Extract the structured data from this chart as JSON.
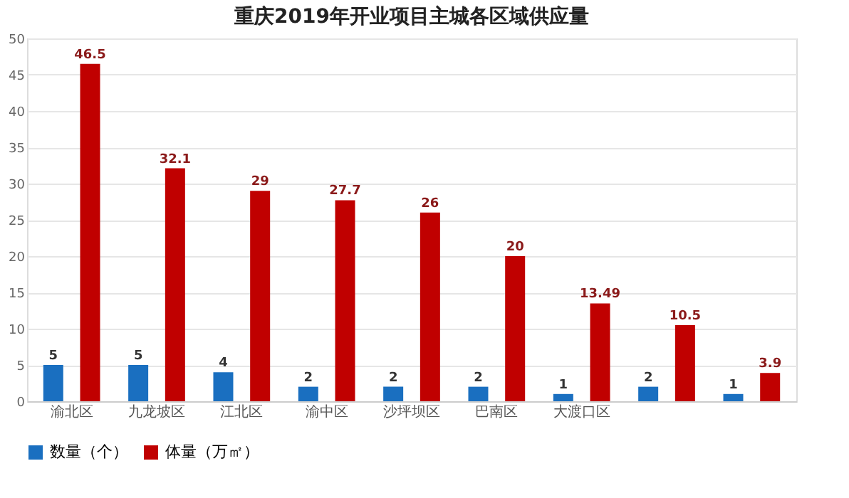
{
  "chart_data": {
    "type": "bar",
    "title": "重庆2019年开业项目主城各区域供应量",
    "categories": [
      "渝北区",
      "九龙坡区",
      "江北区",
      "渝中区",
      "沙坪坝区",
      "巴南区",
      "大渡口区",
      null,
      null
    ],
    "series": [
      {
        "name": "数量（个）",
        "color": "#1a6fc0",
        "values": [
          5,
          5,
          4,
          2,
          2,
          2,
          1,
          2,
          1
        ]
      },
      {
        "name": "体量（万㎡）",
        "color": "#c00000",
        "values": [
          46.5,
          32.1,
          29,
          27.7,
          26,
          20,
          13.49,
          10.5,
          3.9
        ]
      }
    ],
    "ylim": [
      0,
      50
    ],
    "yticks": [
      0,
      5,
      10,
      15,
      20,
      25,
      30,
      35,
      40,
      45,
      50
    ],
    "grid": "y",
    "legend": "bottom",
    "data_labels": true
  }
}
